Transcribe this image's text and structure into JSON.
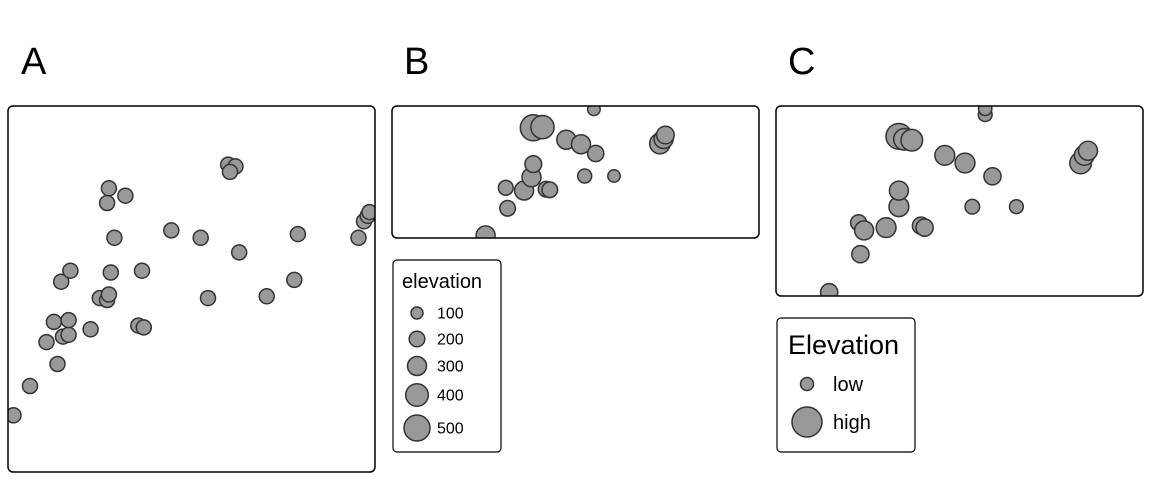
{
  "colors": {
    "point_fill": "#999999",
    "point_stroke": "#333333",
    "frame": "#000000"
  },
  "panels": {
    "A": {
      "label": "A"
    },
    "B": {
      "label": "B"
    },
    "C": {
      "label": "C"
    }
  },
  "legends": {
    "B": {
      "title": "elevation",
      "entries": [
        {
          "label": "100",
          "value": 100
        },
        {
          "label": "200",
          "value": 200
        },
        {
          "label": "300",
          "value": 300
        },
        {
          "label": "400",
          "value": 400
        },
        {
          "label": "500",
          "value": 500
        }
      ]
    },
    "C": {
      "title": "Elevation",
      "entries": [
        {
          "label": "low",
          "value": 100
        },
        {
          "label": "high",
          "value": 500
        }
      ]
    }
  },
  "chart_data": [
    {
      "panel": "A",
      "type": "scatter",
      "grid": false,
      "xlim": [
        0,
        100
      ],
      "ylim": [
        0,
        100
      ],
      "points": [
        {
          "x": 1.5,
          "y": 15.5
        },
        {
          "x": 6.0,
          "y": 23.5
        },
        {
          "x": 10.5,
          "y": 35.5
        },
        {
          "x": 12.5,
          "y": 41.0
        },
        {
          "x": 13.5,
          "y": 29.5
        },
        {
          "x": 15.0,
          "y": 37.0
        },
        {
          "x": 16.5,
          "y": 37.5
        },
        {
          "x": 16.5,
          "y": 41.5
        },
        {
          "x": 14.5,
          "y": 52.0
        },
        {
          "x": 17.0,
          "y": 55.0
        },
        {
          "x": 22.5,
          "y": 39.0
        },
        {
          "x": 25.0,
          "y": 47.5
        },
        {
          "x": 27.0,
          "y": 47.0
        },
        {
          "x": 27.5,
          "y": 48.5
        },
        {
          "x": 28.0,
          "y": 54.5
        },
        {
          "x": 29.0,
          "y": 64.0
        },
        {
          "x": 27.0,
          "y": 73.5
        },
        {
          "x": 27.5,
          "y": 77.5
        },
        {
          "x": 32.0,
          "y": 75.5
        },
        {
          "x": 35.5,
          "y": 40.0
        },
        {
          "x": 37.0,
          "y": 39.5
        },
        {
          "x": 36.5,
          "y": 55.0
        },
        {
          "x": 44.5,
          "y": 66.0
        },
        {
          "x": 52.5,
          "y": 64.0
        },
        {
          "x": 54.5,
          "y": 47.5
        },
        {
          "x": 60.0,
          "y": 84.0
        },
        {
          "x": 62.0,
          "y": 83.5
        },
        {
          "x": 60.5,
          "y": 82.0
        },
        {
          "x": 63.0,
          "y": 60.0
        },
        {
          "x": 70.5,
          "y": 48.0
        },
        {
          "x": 78.0,
          "y": 52.5
        },
        {
          "x": 79.0,
          "y": 65.0
        },
        {
          "x": 95.5,
          "y": 64.0
        },
        {
          "x": 97.0,
          "y": 68.5
        },
        {
          "x": 98.0,
          "y": 70.0
        },
        {
          "x": 98.5,
          "y": 71.0
        }
      ]
    },
    {
      "panel": "B",
      "type": "scatter",
      "grid": false,
      "size_variable": "elevation",
      "xlim": [
        0,
        100
      ],
      "ylim": [
        0,
        100
      ],
      "points": [
        {
          "x": 25.5,
          "y": 2.0,
          "elevation": 300
        },
        {
          "x": 31.5,
          "y": 22.5,
          "elevation": 200
        },
        {
          "x": 31.0,
          "y": 38.0,
          "elevation": 180
        },
        {
          "x": 36.0,
          "y": 36.0,
          "elevation": 300
        },
        {
          "x": 38.0,
          "y": 46.0,
          "elevation": 300
        },
        {
          "x": 38.5,
          "y": 56.0,
          "elevation": 240
        },
        {
          "x": 42.0,
          "y": 37.0,
          "elevation": 200
        },
        {
          "x": 43.0,
          "y": 36.5,
          "elevation": 200
        },
        {
          "x": 38.5,
          "y": 83.5,
          "elevation": 500
        },
        {
          "x": 41.0,
          "y": 84.0,
          "elevation": 420
        },
        {
          "x": 47.5,
          "y": 74.5,
          "elevation": 300
        },
        {
          "x": 51.5,
          "y": 71.0,
          "elevation": 300
        },
        {
          "x": 55.5,
          "y": 64.0,
          "elevation": 220
        },
        {
          "x": 52.5,
          "y": 47.0,
          "elevation": 160
        },
        {
          "x": 60.5,
          "y": 47.0,
          "elevation": 110
        },
        {
          "x": 55.0,
          "y": 97.5,
          "elevation": 120
        },
        {
          "x": 73.0,
          "y": 71.5,
          "elevation": 340
        },
        {
          "x": 74.0,
          "y": 75.0,
          "elevation": 300
        },
        {
          "x": 74.5,
          "y": 78.0,
          "elevation": 260
        }
      ]
    },
    {
      "panel": "C",
      "type": "scatter",
      "grid": false,
      "size_variable": "elevation",
      "xlim": [
        0,
        100
      ],
      "ylim": [
        0,
        100
      ],
      "points": [
        {
          "x": 14.5,
          "y": 2.0,
          "elevation": 200
        },
        {
          "x": 23.0,
          "y": 22.0,
          "elevation": 200
        },
        {
          "x": 22.5,
          "y": 38.5,
          "elevation": 170
        },
        {
          "x": 24.0,
          "y": 34.5,
          "elevation": 240
        },
        {
          "x": 30.0,
          "y": 36.0,
          "elevation": 260
        },
        {
          "x": 33.5,
          "y": 47.0,
          "elevation": 260
        },
        {
          "x": 33.5,
          "y": 55.5,
          "elevation": 240
        },
        {
          "x": 39.5,
          "y": 37.0,
          "elevation": 200
        },
        {
          "x": 40.5,
          "y": 36.0,
          "elevation": 200
        },
        {
          "x": 33.5,
          "y": 84.0,
          "elevation": 400
        },
        {
          "x": 35.0,
          "y": 82.5,
          "elevation": 300
        },
        {
          "x": 37.0,
          "y": 82.0,
          "elevation": 300
        },
        {
          "x": 46.0,
          "y": 74.0,
          "elevation": 260
        },
        {
          "x": 51.5,
          "y": 70.0,
          "elevation": 260
        },
        {
          "x": 59.0,
          "y": 63.0,
          "elevation": 200
        },
        {
          "x": 53.5,
          "y": 47.0,
          "elevation": 140
        },
        {
          "x": 65.5,
          "y": 47.0,
          "elevation": 120
        },
        {
          "x": 57.0,
          "y": 95.5,
          "elevation": 120
        },
        {
          "x": 57.0,
          "y": 98.5,
          "elevation": 110
        },
        {
          "x": 83.0,
          "y": 70.0,
          "elevation": 300
        },
        {
          "x": 84.0,
          "y": 74.0,
          "elevation": 260
        },
        {
          "x": 85.0,
          "y": 76.5,
          "elevation": 240
        }
      ]
    }
  ]
}
